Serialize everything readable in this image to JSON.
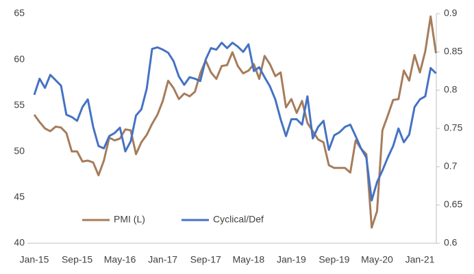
{
  "chart_data": {
    "type": "line",
    "categories": [
      "Jan-15",
      null,
      null,
      null,
      null,
      null,
      null,
      null,
      "Sep-15",
      null,
      null,
      null,
      null,
      null,
      null,
      null,
      "May-16",
      null,
      null,
      null,
      null,
      null,
      null,
      null,
      "Jan-17",
      null,
      null,
      null,
      null,
      null,
      null,
      null,
      "Sep-17",
      null,
      null,
      null,
      null,
      null,
      null,
      null,
      "May-18",
      null,
      null,
      null,
      null,
      null,
      null,
      null,
      "Jan-19",
      null,
      null,
      null,
      null,
      null,
      null,
      null,
      "Sep-19",
      null,
      null,
      null,
      null,
      null,
      null,
      null,
      "May-20",
      null,
      null,
      null,
      null,
      null,
      null,
      null,
      "Jan-21",
      null,
      null,
      null
    ],
    "series": [
      {
        "name": "PMI (L)",
        "color": "#a67c5b",
        "axis": "y",
        "values": [
          54,
          53.2,
          52.5,
          52.2,
          52.7,
          52.6,
          52.0,
          50.0,
          50.0,
          48.9,
          49.0,
          48.8,
          47.4,
          49.0,
          51.5,
          51.2,
          51.4,
          52.4,
          52.3,
          49.7,
          51.0,
          51.8,
          53.0,
          54.0,
          55.5,
          57.7,
          56.9,
          55.7,
          56.3,
          56.0,
          56.5,
          58.5,
          59.9,
          58.6,
          57.9,
          59.3,
          59.4,
          60.8,
          59.3,
          58.5,
          58.8,
          59.5,
          57.9,
          60.4,
          59.5,
          58.2,
          58.6,
          54.8,
          55.7,
          54.2,
          55.5,
          53.1,
          52.2,
          51.3,
          51.0,
          48.5,
          48.2,
          48.2,
          48.2,
          47.7,
          51.2,
          50.3,
          49.7,
          41.7,
          43.5,
          52.3,
          53.9,
          55.6,
          55.7,
          58.8,
          57.7,
          60.5,
          58.6,
          60.9,
          64.7,
          60.7
        ]
      },
      {
        "name": "Cyclical/Def",
        "color": "#4472c4",
        "axis": "y2",
        "values": [
          0.794,
          0.815,
          0.803,
          0.82,
          0.813,
          0.806,
          0.768,
          0.765,
          0.76,
          0.778,
          0.788,
          0.752,
          0.727,
          0.724,
          0.74,
          0.744,
          0.751,
          0.72,
          0.733,
          0.767,
          0.775,
          0.802,
          0.854,
          0.856,
          0.853,
          0.849,
          0.838,
          0.818,
          0.807,
          0.817,
          0.815,
          0.812,
          0.84,
          0.855,
          0.853,
          0.862,
          0.855,
          0.862,
          0.857,
          0.85,
          0.86,
          0.825,
          0.83,
          0.817,
          0.805,
          0.788,
          0.762,
          0.74,
          0.762,
          0.762,
          0.755,
          0.792,
          0.737,
          0.752,
          0.76,
          0.722,
          0.741,
          0.745,
          0.752,
          0.755,
          0.74,
          0.724,
          0.712,
          0.656,
          0.68,
          0.695,
          0.712,
          0.727,
          0.75,
          0.732,
          0.742,
          0.778,
          0.788,
          0.792,
          0.829,
          0.822
        ]
      }
    ],
    "ylim": [
      40,
      65
    ],
    "yticks": [
      40,
      45,
      50,
      55,
      60,
      65
    ],
    "y2lim": [
      0.6,
      0.9
    ],
    "y2ticks": [
      0.6,
      0.65,
      0.7,
      0.75,
      0.8,
      0.85,
      0.9
    ],
    "grid": false,
    "legend": "bottom-left"
  }
}
